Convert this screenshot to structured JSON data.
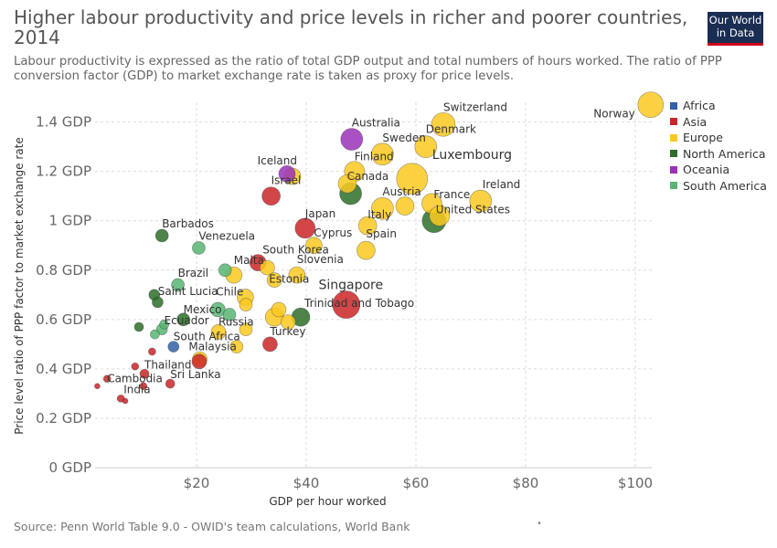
{
  "title": "Higher labour productivity and price levels in richer and poorer countries, 2014",
  "subtitle": "Labour productivity is expressed as the ratio of total GDP output and total numbers of hours worked. The ratio of PPP conversion factor (GDP) to market exchange rate is taken as proxy for price levels.",
  "logo": {
    "line1": "Our World",
    "line2": "in Data"
  },
  "source": "Source: Penn World Table 9.0 - OWID's team calculations, World Bank",
  "footer_dot": "•",
  "chart_data": {
    "type": "scatter",
    "title": "Higher labour productivity and price levels in richer and poorer countries, 2014",
    "xlabel": "GDP per hour worked",
    "ylabel": "Price level ratio of PPP factor to market exchange rate",
    "xlim": [
      1.5,
      103
    ],
    "ylim": [
      0,
      1.48
    ],
    "x_ticks": [
      {
        "v": 20,
        "label": "$20"
      },
      {
        "v": 40,
        "label": "$40"
      },
      {
        "v": 60,
        "label": "$60"
      },
      {
        "v": 80,
        "label": "$80"
      },
      {
        "v": 100,
        "label": "$100"
      }
    ],
    "y_ticks": [
      {
        "v": 0,
        "label": "0 GDP"
      },
      {
        "v": 0.2,
        "label": "0.2 GDP"
      },
      {
        "v": 0.4,
        "label": "0.4 GDP"
      },
      {
        "v": 0.6,
        "label": "0.6 GDP"
      },
      {
        "v": 0.8,
        "label": "0.8 GDP"
      },
      {
        "v": 1.0,
        "label": "1 GDP"
      },
      {
        "v": 1.2,
        "label": "1.2 GDP"
      },
      {
        "v": 1.4,
        "label": "1.4 GDP"
      }
    ],
    "grid": true,
    "legend_position": "right",
    "colors": {
      "Africa": "#3360a9",
      "Asia": "#ca2628",
      "Europe": "#fcc920",
      "North America": "#2d6e2a",
      "Oceania": "#9a32b8",
      "South America": "#58b573"
    },
    "series": [
      {
        "name": "Africa"
      },
      {
        "name": "Asia"
      },
      {
        "name": "Europe"
      },
      {
        "name": "North America"
      },
      {
        "name": "Oceania"
      },
      {
        "name": "South America"
      }
    ],
    "points": [
      {
        "label": "Norway",
        "region": "Europe",
        "x": 102.8,
        "y": 1.47,
        "size": 14
      },
      {
        "label": "Switzerland",
        "region": "Europe",
        "x": 65,
        "y": 1.39,
        "size": 13
      },
      {
        "label": "Denmark",
        "region": "Europe",
        "x": 61.8,
        "y": 1.3,
        "size": 12
      },
      {
        "label": "Sweden",
        "region": "Europe",
        "x": 53.9,
        "y": 1.27,
        "size": 12
      },
      {
        "label": "Australia",
        "region": "Oceania",
        "x": 48.3,
        "y": 1.33,
        "size": 12
      },
      {
        "label": "Finland",
        "region": "Europe",
        "x": 48.8,
        "y": 1.2,
        "size": 11
      },
      {
        "label": "Iceland",
        "region": "Europe",
        "x": 37.5,
        "y": 1.18,
        "size": 9
      },
      {
        "label": "",
        "region": "Oceania",
        "x": 36.5,
        "y": 1.19,
        "size": 9
      },
      {
        "label": "Luxembourg",
        "region": "Europe",
        "x": 59.3,
        "y": 1.17,
        "size": 17
      },
      {
        "label": "Canada",
        "region": "North America",
        "x": 48.1,
        "y": 1.11,
        "size": 12
      },
      {
        "label": "",
        "region": "Europe",
        "x": 47.5,
        "y": 1.15,
        "size": 10
      },
      {
        "label": "Israel",
        "region": "Asia",
        "x": 33.6,
        "y": 1.1,
        "size": 10
      },
      {
        "label": "Austria",
        "region": "Europe",
        "x": 53.9,
        "y": 1.05,
        "size": 12
      },
      {
        "label": "",
        "region": "Europe",
        "x": 58,
        "y": 1.06,
        "size": 10
      },
      {
        "label": "France",
        "region": "Europe",
        "x": 62.9,
        "y": 1.07,
        "size": 11
      },
      {
        "label": "Ireland",
        "region": "Europe",
        "x": 71.8,
        "y": 1.08,
        "size": 12
      },
      {
        "label": "United States",
        "region": "North America",
        "x": 63.3,
        "y": 1.0,
        "size": 13
      },
      {
        "label": "",
        "region": "Europe",
        "x": 64.3,
        "y": 1.02,
        "size": 11
      },
      {
        "label": "Italy",
        "region": "Europe",
        "x": 51.2,
        "y": 0.98,
        "size": 10
      },
      {
        "label": "Japan",
        "region": "Asia",
        "x": 39.8,
        "y": 0.97,
        "size": 11
      },
      {
        "label": "Cyprus",
        "region": "Europe",
        "x": 41.4,
        "y": 0.9,
        "size": 9
      },
      {
        "label": "Spain",
        "region": "Europe",
        "x": 50.9,
        "y": 0.88,
        "size": 10
      },
      {
        "label": "Barbados",
        "region": "North America",
        "x": 13.7,
        "y": 0.94,
        "size": 7
      },
      {
        "label": "Venezuela",
        "region": "South America",
        "x": 20.4,
        "y": 0.89,
        "size": 7
      },
      {
        "label": "South Korea",
        "region": "Asia",
        "x": 31.2,
        "y": 0.83,
        "size": 9
      },
      {
        "label": "",
        "region": "Europe",
        "x": 32.9,
        "y": 0.81,
        "size": 8
      },
      {
        "label": "Malta",
        "region": "Europe",
        "x": 26.8,
        "y": 0.78,
        "size": 9
      },
      {
        "label": "",
        "region": "South America",
        "x": 25.2,
        "y": 0.8,
        "size": 7
      },
      {
        "label": "Slovenia",
        "region": "Europe",
        "x": 38.3,
        "y": 0.78,
        "size": 9
      },
      {
        "label": "Estonia",
        "region": "Europe",
        "x": 34.2,
        "y": 0.76,
        "size": 8
      },
      {
        "label": "Brazil",
        "region": "South America",
        "x": 16.6,
        "y": 0.74,
        "size": 7
      },
      {
        "label": "Chile",
        "region": "Europe",
        "x": 28.9,
        "y": 0.69,
        "size": 9
      },
      {
        "label": "Saint Lucia",
        "region": "North America",
        "x": 12.3,
        "y": 0.7,
        "size": 6
      },
      {
        "label": "",
        "region": "North America",
        "x": 12.9,
        "y": 0.67,
        "size": 6
      },
      {
        "label": "Singapore",
        "region": "Asia",
        "x": 47.3,
        "y": 0.66,
        "size": 15
      },
      {
        "label": "",
        "region": "South America",
        "x": 23.9,
        "y": 0.64,
        "size": 8
      },
      {
        "label": "Mexico",
        "region": "North America",
        "x": 17.6,
        "y": 0.6,
        "size": 7
      },
      {
        "label": "",
        "region": "Europe",
        "x": 29.0,
        "y": 0.66,
        "size": 7
      },
      {
        "label": "",
        "region": "Europe",
        "x": 35.0,
        "y": 0.64,
        "size": 8
      },
      {
        "label": "",
        "region": "Europe",
        "x": 34.2,
        "y": 0.61,
        "size": 10
      },
      {
        "label": "",
        "region": "Europe",
        "x": 36.7,
        "y": 0.59,
        "size": 8
      },
      {
        "label": "Trinidad and Tobago",
        "region": "North America",
        "x": 39.0,
        "y": 0.61,
        "size": 10
      },
      {
        "label": "Ecuador",
        "region": "South America",
        "x": 14.1,
        "y": 0.58,
        "size": 5
      },
      {
        "label": "",
        "region": "South America",
        "x": 13.7,
        "y": 0.56,
        "size": 6
      },
      {
        "label": "",
        "region": "North America",
        "x": 9.5,
        "y": 0.57,
        "size": 5
      },
      {
        "label": "",
        "region": "South America",
        "x": 26.0,
        "y": 0.62,
        "size": 7
      },
      {
        "label": "Russia",
        "region": "Europe",
        "x": 24.0,
        "y": 0.55,
        "size": 8
      },
      {
        "label": "",
        "region": "Europe",
        "x": 29.0,
        "y": 0.56,
        "size": 7
      },
      {
        "label": "",
        "region": "South America",
        "x": 12.4,
        "y": 0.54,
        "size": 5
      },
      {
        "label": "South Africa",
        "region": "Africa",
        "x": 15.8,
        "y": 0.49,
        "size": 6
      },
      {
        "label": "Malaysia",
        "region": "Europe",
        "x": 27.3,
        "y": 0.49,
        "size": 7
      },
      {
        "label": "Turkey",
        "region": "Asia",
        "x": 33.4,
        "y": 0.5,
        "size": 8
      },
      {
        "label": "",
        "region": "Asia",
        "x": 11.9,
        "y": 0.47,
        "size": 4
      },
      {
        "label": "",
        "region": "Europe",
        "x": 20.6,
        "y": 0.44,
        "size": 8
      },
      {
        "label": "",
        "region": "Asia",
        "x": 20.5,
        "y": 0.43,
        "size": 8
      },
      {
        "label": "Thailand",
        "region": "Asia",
        "x": 10.5,
        "y": 0.38,
        "size": 5
      },
      {
        "label": "",
        "region": "Asia",
        "x": 8.8,
        "y": 0.41,
        "size": 4
      },
      {
        "label": "Sri Lanka",
        "region": "Asia",
        "x": 15.2,
        "y": 0.34,
        "size": 5
      },
      {
        "label": "",
        "region": "Asia",
        "x": 10.3,
        "y": 0.33,
        "size": 4
      },
      {
        "label": "Cambodia",
        "region": "Asia",
        "x": 3.7,
        "y": 0.36,
        "size": 4
      },
      {
        "label": "",
        "region": "Asia",
        "x": 1.9,
        "y": 0.33,
        "size": 3
      },
      {
        "label": "India",
        "region": "Asia",
        "x": 6.2,
        "y": 0.28,
        "size": 4
      },
      {
        "label": "",
        "region": "Asia",
        "x": 7.0,
        "y": 0.27,
        "size": 3
      }
    ]
  }
}
